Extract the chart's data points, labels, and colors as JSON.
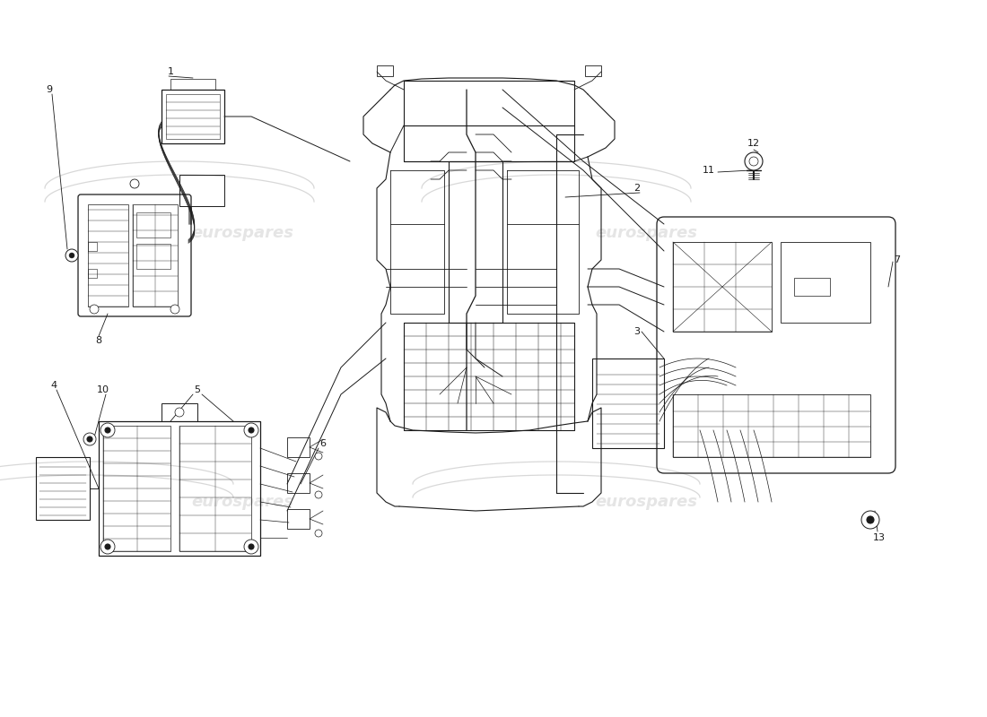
{
  "bg_color": "#ffffff",
  "lc": "#1a1a1a",
  "wm_color": "#cccccc",
  "wm_alpha": 0.5,
  "figsize": [
    11.0,
    8.0
  ],
  "dpi": 100,
  "xlim": [
    0,
    110
  ],
  "ylim": [
    0,
    80
  ]
}
